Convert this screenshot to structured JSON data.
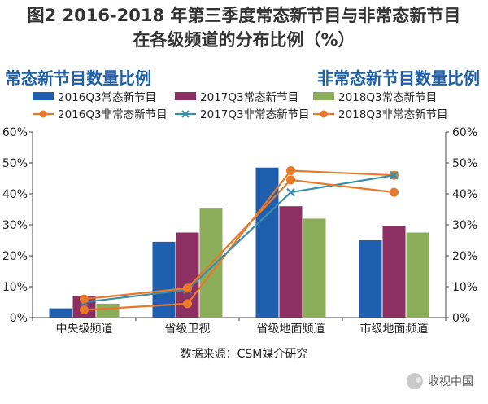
{
  "figure": {
    "title_line1": "图2 2016-2018 年第三季度常态新节目与非常态新节目",
    "title_line2": "在各级频道的分布比例（%）",
    "left_heading": "常态新节目数量比例",
    "right_heading": "非常态新节目数量比例",
    "source": "数据来源：CSM媒介研究",
    "watermark": "收视中国"
  },
  "colors": {
    "bar_2016": "#1f5fb0",
    "bar_2017": "#8e2f63",
    "bar_2018": "#8cad5a",
    "line_2016": "#e8782a",
    "line_2017": "#3a8fa8",
    "line_2018": "#e8782a",
    "axis": "#444444"
  },
  "chart_data": {
    "type": "bar",
    "categories": [
      "中央级频道",
      "省级卫视",
      "省级地面频道",
      "市级地面频道"
    ],
    "series": [
      {
        "name": "2016Q3常态新节目",
        "kind": "bar",
        "axis": "left",
        "values": [
          3,
          24.5,
          48.5,
          25
        ]
      },
      {
        "name": "2017Q3常态新节目",
        "kind": "bar",
        "axis": "left",
        "values": [
          7,
          27.5,
          36,
          29.5
        ]
      },
      {
        "name": "2018Q3常态新节目",
        "kind": "bar",
        "axis": "left",
        "values": [
          4.5,
          35.5,
          32,
          27.5
        ]
      },
      {
        "name": "2016Q3非常态新节目",
        "kind": "line",
        "marker": "circle",
        "axis": "right",
        "values": [
          2.5,
          4.5,
          47.5,
          46
        ]
      },
      {
        "name": "2017Q3非常态新节目",
        "kind": "line",
        "marker": "x",
        "axis": "right",
        "values": [
          5,
          9,
          40.5,
          46
        ]
      },
      {
        "name": "2018Q3非常态新节目",
        "kind": "line",
        "marker": "circle",
        "axis": "right",
        "values": [
          6,
          9.5,
          44.5,
          40.5
        ]
      }
    ],
    "ylim": [
      0,
      60
    ],
    "y_ticks": [
      "0%",
      "10%",
      "20%",
      "30%",
      "40%",
      "50%",
      "60%"
    ],
    "y2_ticks": [
      "0%",
      "10%",
      "20%",
      "30%",
      "40%",
      "50%",
      "60%"
    ],
    "legend_position": "top"
  }
}
